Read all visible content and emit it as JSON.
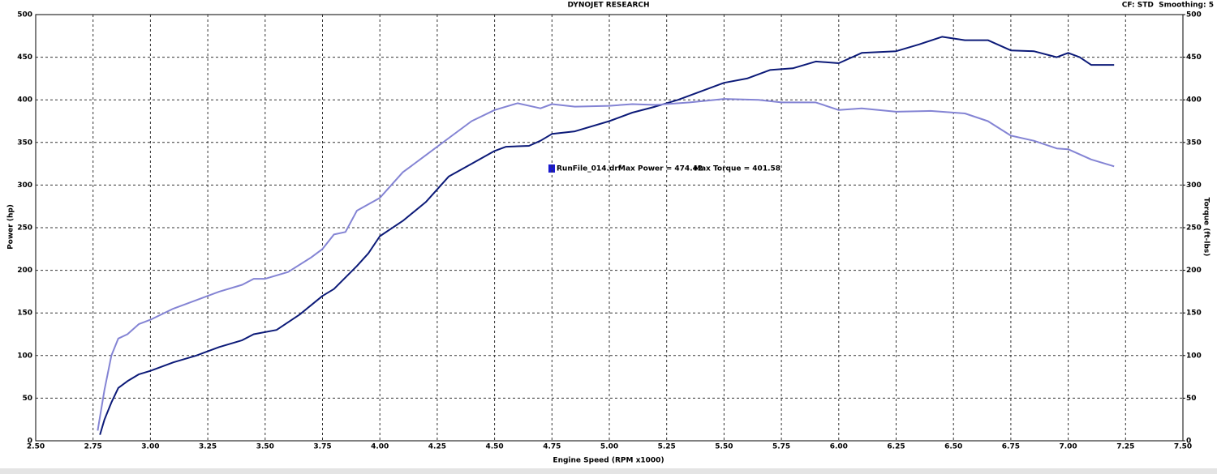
{
  "chart_data": {
    "type": "line",
    "title": "DYNOJET RESEARCH",
    "subtitle": "CF: STD  Smoothing: 5",
    "x_label": "Engine Speed (RPM x1000)",
    "y_label": "Power (hp)",
    "y2_label": "Torque (ft-lbs)",
    "legend_label": "RunFile_014.drf",
    "annotations": [
      "Max Power = 474.42",
      "Max Torque = 401.58"
    ],
    "legend_color": "#1a1ad0",
    "grid": true,
    "xlim": [
      2.5,
      7.5
    ],
    "xticks": [
      {
        "value": 2.5,
        "label": "2.50"
      },
      {
        "value": 2.75,
        "label": "2.75"
      },
      {
        "value": 3.0,
        "label": "3.00"
      },
      {
        "value": 3.25,
        "label": "3.25"
      },
      {
        "value": 3.5,
        "label": "3.50"
      },
      {
        "value": 3.75,
        "label": "3.75"
      },
      {
        "value": 4.0,
        "label": "4.00"
      },
      {
        "value": 4.25,
        "label": "4.25"
      },
      {
        "value": 4.5,
        "label": "4.50"
      },
      {
        "value": 4.75,
        "label": "4.75"
      },
      {
        "value": 5.0,
        "label": "5.00"
      },
      {
        "value": 5.25,
        "label": "5.25"
      },
      {
        "value": 5.5,
        "label": "5.50"
      },
      {
        "value": 5.75,
        "label": "5.75"
      },
      {
        "value": 6.0,
        "label": "6.00"
      },
      {
        "value": 6.25,
        "label": "6.25"
      },
      {
        "value": 6.5,
        "label": "6.50"
      },
      {
        "value": 6.75,
        "label": "6.75"
      },
      {
        "value": 7.0,
        "label": "7.00"
      },
      {
        "value": 7.25,
        "label": "7.25"
      },
      {
        "value": 7.5,
        "label": "7.50"
      }
    ],
    "ylim": [
      0,
      500
    ],
    "yticks": [
      0,
      50,
      100,
      150,
      200,
      250,
      300,
      350,
      400,
      450,
      500
    ],
    "y2lim": [
      0,
      500
    ],
    "y2ticks": [
      0,
      50,
      100,
      150,
      200,
      250,
      300,
      350,
      400,
      450,
      500
    ],
    "series": [
      {
        "color": "#0c1a78",
        "x": [
          2.78,
          2.8,
          2.83,
          2.86,
          2.9,
          2.95,
          3.0,
          3.1,
          3.2,
          3.3,
          3.4,
          3.45,
          3.55,
          3.65,
          3.75,
          3.8,
          3.9,
          3.95,
          4.0,
          4.1,
          4.2,
          4.3,
          4.4,
          4.5,
          4.55,
          4.65,
          4.7,
          4.75,
          4.85,
          5.0,
          5.1,
          5.2,
          5.3,
          5.4,
          5.5,
          5.6,
          5.7,
          5.8,
          5.9,
          6.0,
          6.1,
          6.25,
          6.35,
          6.45,
          6.55,
          6.65,
          6.75,
          6.85,
          6.95,
          7.0,
          7.05,
          7.1,
          7.2
        ],
        "values": [
          7,
          25,
          45,
          62,
          70,
          78,
          82,
          92,
          100,
          110,
          118,
          125,
          130,
          148,
          170,
          178,
          205,
          220,
          240,
          258,
          280,
          310,
          325,
          340,
          345,
          346,
          352,
          360,
          363,
          375,
          385,
          392,
          400,
          410,
          420,
          425,
          435,
          437,
          445,
          443,
          455,
          457,
          465,
          474,
          470,
          470,
          458,
          457,
          450,
          455,
          450,
          441,
          441
        ]
      },
      {
        "color": "#8484d4",
        "axis": "y2",
        "x": [
          2.77,
          2.8,
          2.83,
          2.86,
          2.9,
          2.95,
          3.0,
          3.1,
          3.2,
          3.3,
          3.4,
          3.45,
          3.5,
          3.6,
          3.7,
          3.75,
          3.8,
          3.85,
          3.9,
          4.0,
          4.1,
          4.2,
          4.3,
          4.4,
          4.5,
          4.6,
          4.7,
          4.75,
          4.85,
          5.0,
          5.1,
          5.2,
          5.35,
          5.5,
          5.65,
          5.75,
          5.9,
          6.0,
          6.1,
          6.25,
          6.4,
          6.55,
          6.65,
          6.75,
          6.85,
          6.95,
          7.0,
          7.1,
          7.2
        ],
        "values": [
          12,
          60,
          100,
          120,
          125,
          137,
          142,
          155,
          165,
          175,
          183,
          190,
          190,
          198,
          215,
          225,
          242,
          245,
          270,
          285,
          315,
          335,
          355,
          375,
          388,
          396,
          390,
          395,
          392,
          393,
          395,
          394,
          397,
          401,
          400,
          397,
          397,
          388,
          390,
          386,
          387,
          384,
          375,
          358,
          352,
          343,
          342,
          330,
          322
        ]
      }
    ]
  }
}
